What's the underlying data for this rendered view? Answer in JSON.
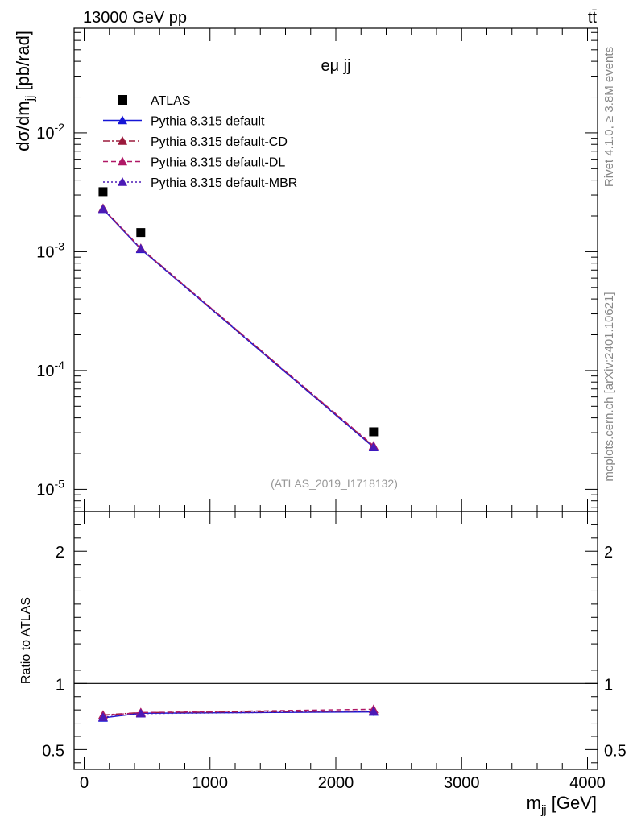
{
  "header": {
    "left": "13000 GeV pp",
    "right": "tt̄"
  },
  "side": {
    "rivet": "Rivet 4.1.0, ≥ 3.8M events",
    "site": "mcplots.cern.ch [arXiv:2401.10621]"
  },
  "chart_data": [
    {
      "type": "line",
      "panel": "main",
      "title": "eμ jj",
      "watermark": "(ATLAS_2019_I1718132)",
      "ylabel": "dσ/dm_jj [pb/rad]",
      "yscale": "log",
      "ylim": [
        6.5e-06,
        0.076
      ],
      "xlim": [
        -80,
        4080
      ],
      "ytick_labels": [
        "10^-5",
        "10^-4",
        "10^-3",
        "10^-2"
      ],
      "x": [
        150,
        450,
        2300
      ],
      "series": [
        {
          "name": "ATLAS",
          "color": "#000000",
          "marker": "square",
          "line": "none",
          "values": [
            0.0032,
            0.00145,
            3.05e-05
          ]
        },
        {
          "name": "Pythia 8.315 default",
          "color": "#1515d6",
          "marker": "triangle",
          "line": "solid",
          "values": [
            0.00228,
            0.00105,
            2.26e-05
          ]
        },
        {
          "name": "Pythia 8.315 default-CD",
          "color": "#9b1a3c",
          "marker": "triangle",
          "line": "dashdot",
          "values": [
            0.00232,
            0.00107,
            2.3e-05
          ]
        },
        {
          "name": "Pythia 8.315 default-DL",
          "color": "#b01866",
          "marker": "triangle",
          "line": "dashed",
          "values": [
            0.0023,
            0.00106,
            2.33e-05
          ]
        },
        {
          "name": "Pythia 8.315 default-MBR",
          "color": "#4b1ab6",
          "marker": "triangle",
          "line": "dotted",
          "values": [
            0.00229,
            0.00106,
            2.27e-05
          ]
        }
      ]
    },
    {
      "type": "line",
      "panel": "ratio",
      "ylabel": "Ratio to ATLAS",
      "xlabel": "m_jj [GeV]",
      "ylim": [
        0.35,
        2.3
      ],
      "xlim": [
        -80,
        4080
      ],
      "ytick_labels": [
        "0.5",
        "1",
        "2"
      ],
      "xtick_labels": [
        "0",
        "1000",
        "2000",
        "3000",
        "4000"
      ],
      "x": [
        150,
        450,
        2300
      ],
      "series": [
        {
          "name": "Pythia 8.315 default",
          "values": [
            0.74,
            0.775,
            0.785
          ],
          "errors": [
            0,
            0,
            0.03
          ]
        },
        {
          "name": "Pythia 8.315 default-CD",
          "values": [
            0.762,
            0.78,
            0.792
          ],
          "errors": [
            0,
            0,
            0.03
          ]
        },
        {
          "name": "Pythia 8.315 default-DL",
          "values": [
            0.758,
            0.78,
            0.805
          ],
          "errors": [
            0,
            0,
            0.03
          ]
        },
        {
          "name": "Pythia 8.315 default-MBR",
          "values": [
            0.745,
            0.772,
            0.788
          ],
          "errors": [
            0,
            0,
            0.03
          ]
        }
      ]
    }
  ]
}
